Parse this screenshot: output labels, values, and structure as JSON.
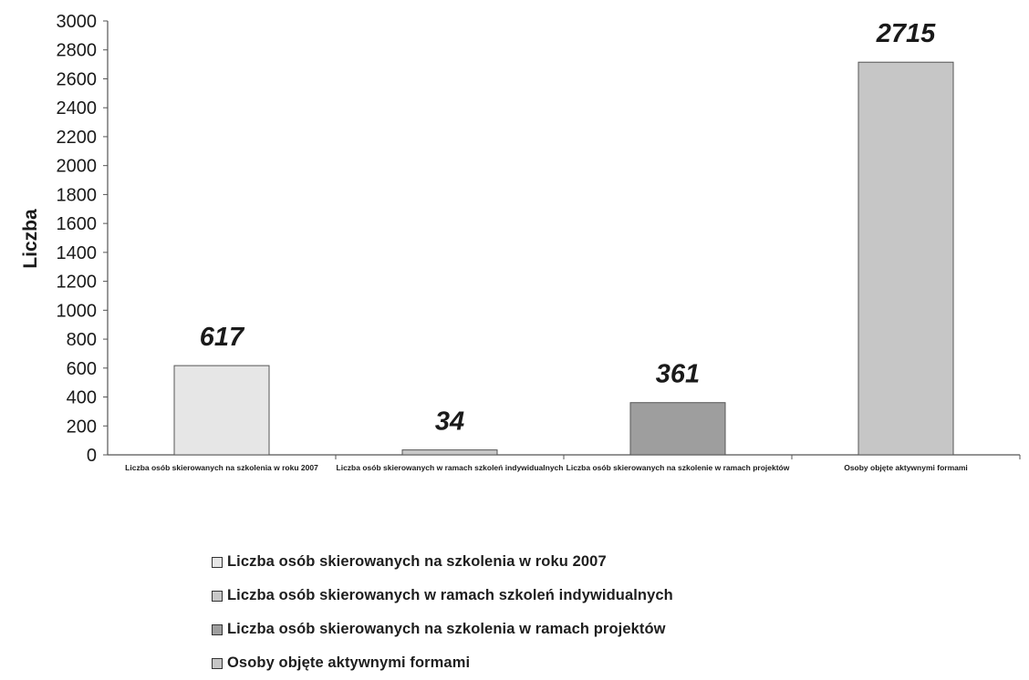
{
  "chart_data": {
    "type": "bar",
    "ylabel": "Liczba",
    "ylim": [
      0,
      3000
    ],
    "y_ticks": [
      "0",
      "200",
      "400",
      "600",
      "800",
      "1000",
      "1200",
      "1400",
      "1600",
      "1800",
      "2000",
      "2200",
      "2400",
      "2600",
      "2800",
      "3000"
    ],
    "categories": [
      "Liczba osób skierowanych na szkolenia w roku 2007",
      "Liczba osób skierowanych w ramach szkoleń indywidualnych",
      "Liczba osób skierowanych na szkolenie w ramach projektów",
      "Osoby objęte aktywnymi formami"
    ],
    "values": [
      617,
      34,
      361,
      2715
    ],
    "data_labels": [
      "617",
      "34",
      "361",
      "2715"
    ],
    "colors": [
      "#e6e6e6",
      "#c8c8c8",
      "#9e9e9e",
      "#c6c6c6"
    ],
    "legend": [
      "Liczba osób skierowanych na szkolenia w roku 2007",
      "Liczba osób skierowanych w ramach szkoleń indywidualnych",
      "Liczba osób skierowanych na szkolenia w ramach projektów",
      "Osoby objęte aktywnymi formami"
    ],
    "legend_placement": "bottom",
    "grid": false
  }
}
